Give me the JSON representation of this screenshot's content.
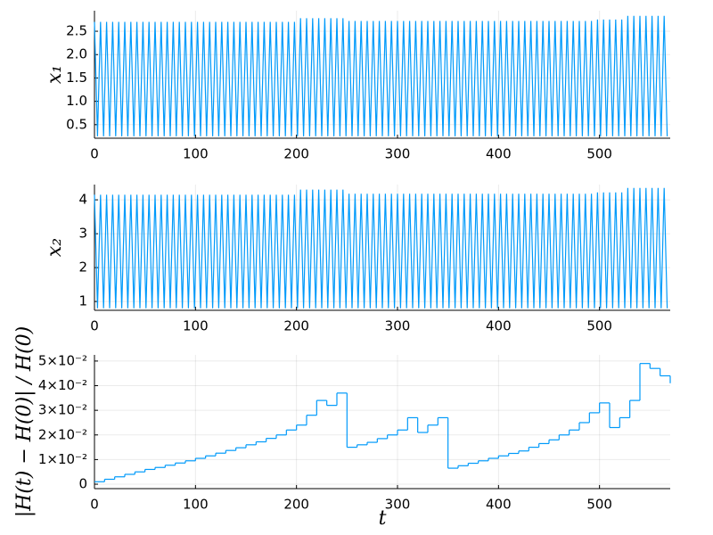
{
  "chart_data": [
    {
      "type": "line",
      "y_label": "x₁",
      "xlim": [
        0,
        570
      ],
      "ylim": [
        0.21,
        2.94
      ],
      "xticks": [
        0,
        100,
        200,
        300,
        400,
        500
      ],
      "yticks": [
        0.5,
        {
          "value": 1,
          "label": "1.0"
        },
        1.5,
        {
          "value": 2,
          "label": "2.0"
        },
        2.5
      ],
      "grid": true,
      "x": [
        0,
        3,
        6,
        9,
        12,
        15,
        18,
        21,
        24,
        27,
        30,
        33,
        36,
        39,
        42,
        45,
        48,
        51,
        54,
        57,
        60,
        63,
        66,
        69,
        72,
        75,
        78,
        81,
        84,
        87,
        90,
        93,
        96,
        99,
        102,
        105,
        108,
        111,
        114,
        117,
        120,
        123,
        126,
        129,
        132,
        135,
        138,
        141,
        144,
        147,
        150,
        153,
        156,
        159,
        162,
        165,
        168,
        171,
        174,
        177,
        180,
        183,
        186,
        189,
        192,
        195,
        198,
        201,
        204,
        207,
        210,
        213,
        216,
        219,
        222,
        225,
        228,
        231,
        234,
        237,
        240,
        243,
        246,
        249,
        252,
        255,
        258,
        261,
        264,
        267,
        270,
        273,
        276,
        279,
        282,
        285,
        288,
        291,
        294,
        297,
        300,
        303,
        306,
        309,
        312,
        315,
        318,
        321,
        324,
        327,
        330,
        333,
        336,
        339,
        342,
        345,
        348,
        351,
        354,
        357,
        360,
        363,
        366,
        369,
        372,
        375,
        378,
        381,
        384,
        387,
        390,
        393,
        396,
        399,
        402,
        405,
        408,
        411,
        414,
        417,
        420,
        423,
        426,
        429,
        432,
        435,
        438,
        441,
        444,
        447,
        450,
        453,
        456,
        459,
        462,
        465,
        468,
        471,
        474,
        477,
        480,
        483,
        486,
        489,
        492,
        495,
        498,
        501,
        504,
        507,
        510,
        513,
        516,
        519,
        522,
        525,
        528,
        531,
        534,
        537,
        540,
        543,
        546,
        549,
        552,
        555,
        558,
        561,
        564,
        567
      ],
      "series": [
        {
          "name": "x1",
          "color": "#009afa",
          "values": [
            2.7,
            0.25,
            2.7,
            0.25,
            2.7,
            0.25,
            2.7,
            0.25,
            2.7,
            0.25,
            2.7,
            0.25,
            2.7,
            0.25,
            2.7,
            0.25,
            2.7,
            0.25,
            2.7,
            0.25,
            2.7,
            0.25,
            2.7,
            0.25,
            2.7,
            0.25,
            2.7,
            0.25,
            2.7,
            0.25,
            2.7,
            0.25,
            2.7,
            0.25,
            2.7,
            0.25,
            2.7,
            0.25,
            2.7,
            0.25,
            2.7,
            0.25,
            2.7,
            0.25,
            2.7,
            0.25,
            2.7,
            0.25,
            2.7,
            0.25,
            2.7,
            0.25,
            2.7,
            0.25,
            2.7,
            0.25,
            2.7,
            0.25,
            2.7,
            0.25,
            2.7,
            0.25,
            2.7,
            0.25,
            2.7,
            0.25,
            2.7,
            0.25,
            2.78,
            0.25,
            2.78,
            0.25,
            2.78,
            0.25,
            2.78,
            0.25,
            2.78,
            0.25,
            2.78,
            0.25,
            2.78,
            0.25,
            2.78,
            0.25,
            2.72,
            0.25,
            2.72,
            0.25,
            2.72,
            0.25,
            2.72,
            0.25,
            2.72,
            0.25,
            2.72,
            0.25,
            2.72,
            0.25,
            2.72,
            0.25,
            2.72,
            0.25,
            2.72,
            0.25,
            2.72,
            0.25,
            2.72,
            0.25,
            2.72,
            0.25,
            2.72,
            0.25,
            2.72,
            0.25,
            2.72,
            0.25,
            2.72,
            0.25,
            2.72,
            0.25,
            2.72,
            0.25,
            2.72,
            0.25,
            2.72,
            0.25,
            2.72,
            0.25,
            2.72,
            0.25,
            2.72,
            0.25,
            2.72,
            0.25,
            2.72,
            0.25,
            2.72,
            0.25,
            2.72,
            0.25,
            2.72,
            0.25,
            2.72,
            0.25,
            2.72,
            0.25,
            2.72,
            0.25,
            2.72,
            0.25,
            2.72,
            0.25,
            2.72,
            0.25,
            2.72,
            0.25,
            2.72,
            0.25,
            2.72,
            0.25,
            2.72,
            0.25,
            2.72,
            0.25,
            2.72,
            0.25,
            2.75,
            0.25,
            2.75,
            0.25,
            2.75,
            0.25,
            2.75,
            0.25,
            2.75,
            0.25,
            2.83,
            0.25,
            2.83,
            0.25,
            2.83,
            0.25,
            2.83,
            0.25,
            2.83,
            0.25,
            2.83,
            0.25,
            2.83,
            0.25
          ]
        }
      ]
    },
    {
      "type": "line",
      "y_label": "x₂",
      "xlim": [
        0,
        570
      ],
      "ylim": [
        0.74,
        4.45
      ],
      "xticks": [
        0,
        100,
        200,
        300,
        400,
        500
      ],
      "yticks": [
        1,
        2,
        3,
        4
      ],
      "grid": true,
      "x": [
        0,
        3,
        6,
        9,
        12,
        15,
        18,
        21,
        24,
        27,
        30,
        33,
        36,
        39,
        42,
        45,
        48,
        51,
        54,
        57,
        60,
        63,
        66,
        69,
        72,
        75,
        78,
        81,
        84,
        87,
        90,
        93,
        96,
        99,
        102,
        105,
        108,
        111,
        114,
        117,
        120,
        123,
        126,
        129,
        132,
        135,
        138,
        141,
        144,
        147,
        150,
        153,
        156,
        159,
        162,
        165,
        168,
        171,
        174,
        177,
        180,
        183,
        186,
        189,
        192,
        195,
        198,
        201,
        204,
        207,
        210,
        213,
        216,
        219,
        222,
        225,
        228,
        231,
        234,
        237,
        240,
        243,
        246,
        249,
        252,
        255,
        258,
        261,
        264,
        267,
        270,
        273,
        276,
        279,
        282,
        285,
        288,
        291,
        294,
        297,
        300,
        303,
        306,
        309,
        312,
        315,
        318,
        321,
        324,
        327,
        330,
        333,
        336,
        339,
        342,
        345,
        348,
        351,
        354,
        357,
        360,
        363,
        366,
        369,
        372,
        375,
        378,
        381,
        384,
        387,
        390,
        393,
        396,
        399,
        402,
        405,
        408,
        411,
        414,
        417,
        420,
        423,
        426,
        429,
        432,
        435,
        438,
        441,
        444,
        447,
        450,
        453,
        456,
        459,
        462,
        465,
        468,
        471,
        474,
        477,
        480,
        483,
        486,
        489,
        492,
        495,
        498,
        501,
        504,
        507,
        510,
        513,
        516,
        519,
        522,
        525,
        528,
        531,
        534,
        537,
        540,
        543,
        546,
        549,
        552,
        555,
        558,
        561,
        564,
        567
      ],
      "series": [
        {
          "name": "x2",
          "color": "#009afa",
          "values": [
            4.15,
            0.8,
            4.15,
            0.8,
            4.15,
            0.8,
            4.15,
            0.8,
            4.15,
            0.8,
            4.15,
            0.8,
            4.15,
            0.8,
            4.15,
            0.8,
            4.15,
            0.8,
            4.15,
            0.8,
            4.15,
            0.8,
            4.15,
            0.8,
            4.15,
            0.8,
            4.15,
            0.8,
            4.15,
            0.8,
            4.15,
            0.8,
            4.15,
            0.8,
            4.15,
            0.8,
            4.15,
            0.8,
            4.15,
            0.8,
            4.15,
            0.8,
            4.15,
            0.8,
            4.15,
            0.8,
            4.15,
            0.8,
            4.15,
            0.8,
            4.15,
            0.8,
            4.15,
            0.8,
            4.15,
            0.8,
            4.15,
            0.8,
            4.15,
            0.8,
            4.15,
            0.8,
            4.15,
            0.8,
            4.15,
            0.8,
            4.15,
            0.8,
            4.3,
            0.8,
            4.3,
            0.8,
            4.3,
            0.8,
            4.3,
            0.8,
            4.3,
            0.8,
            4.3,
            0.8,
            4.3,
            0.8,
            4.3,
            0.8,
            4.18,
            0.8,
            4.18,
            0.8,
            4.18,
            0.8,
            4.18,
            0.8,
            4.18,
            0.8,
            4.18,
            0.8,
            4.18,
            0.8,
            4.18,
            0.8,
            4.18,
            0.8,
            4.18,
            0.8,
            4.18,
            0.8,
            4.18,
            0.8,
            4.18,
            0.8,
            4.18,
            0.8,
            4.18,
            0.8,
            4.18,
            0.8,
            4.18,
            0.8,
            4.18,
            0.8,
            4.18,
            0.8,
            4.18,
            0.8,
            4.18,
            0.8,
            4.18,
            0.8,
            4.18,
            0.8,
            4.18,
            0.8,
            4.18,
            0.8,
            4.18,
            0.8,
            4.18,
            0.8,
            4.18,
            0.8,
            4.18,
            0.8,
            4.18,
            0.8,
            4.18,
            0.8,
            4.18,
            0.8,
            4.18,
            0.8,
            4.18,
            0.8,
            4.18,
            0.8,
            4.18,
            0.8,
            4.18,
            0.8,
            4.18,
            0.8,
            4.18,
            0.8,
            4.18,
            0.8,
            4.18,
            0.8,
            4.22,
            0.8,
            4.22,
            0.8,
            4.22,
            0.8,
            4.22,
            0.8,
            4.22,
            0.8,
            4.35,
            0.8,
            4.35,
            0.8,
            4.35,
            0.8,
            4.35,
            0.8,
            4.35,
            0.8,
            4.35,
            0.8,
            4.35,
            0.8
          ]
        }
      ]
    },
    {
      "type": "step",
      "y_label": "|H(t) − H(0)| / H(0)",
      "x_label": "t",
      "xlim": [
        0,
        570
      ],
      "ylim": [
        -0.0018,
        0.0525
      ],
      "xticks": [
        0,
        100,
        200,
        300,
        400,
        500
      ],
      "yticks": [
        0,
        {
          "value": 0.01,
          "label": "1×10⁻²"
        },
        {
          "value": 0.02,
          "label": "2×10⁻²"
        },
        {
          "value": 0.03,
          "label": "3×10⁻²"
        },
        {
          "value": 0.04,
          "label": "4×10⁻²"
        },
        {
          "value": 0.05,
          "label": "5×10⁻²"
        }
      ],
      "grid": true,
      "x": [
        0,
        10,
        20,
        30,
        40,
        50,
        60,
        70,
        80,
        90,
        100,
        110,
        120,
        130,
        140,
        150,
        160,
        170,
        180,
        190,
        200,
        210,
        220,
        230,
        240,
        250,
        260,
        270,
        280,
        290,
        300,
        310,
        320,
        330,
        340,
        350,
        360,
        370,
        380,
        390,
        400,
        410,
        420,
        430,
        440,
        450,
        460,
        470,
        480,
        490,
        500,
        510,
        520,
        530,
        540,
        550,
        560,
        570
      ],
      "series": [
        {
          "name": "H",
          "color": "#009afa",
          "values": [
            0.001,
            0.002,
            0.003,
            0.004,
            0.005,
            0.006,
            0.0068,
            0.0077,
            0.0086,
            0.0095,
            0.0105,
            0.0115,
            0.0126,
            0.0137,
            0.0148,
            0.016,
            0.0172,
            0.0186,
            0.02,
            0.022,
            0.024,
            0.028,
            0.034,
            0.032,
            0.037,
            0.015,
            0.016,
            0.017,
            0.0185,
            0.02,
            0.022,
            0.027,
            0.021,
            0.024,
            0.027,
            0.0065,
            0.0075,
            0.0085,
            0.0095,
            0.0105,
            0.0115,
            0.0125,
            0.0135,
            0.015,
            0.0165,
            0.018,
            0.02,
            0.022,
            0.025,
            0.029,
            0.033,
            0.023,
            0.027,
            0.034,
            0.049,
            0.047,
            0.044,
            0.041
          ]
        }
      ]
    }
  ]
}
